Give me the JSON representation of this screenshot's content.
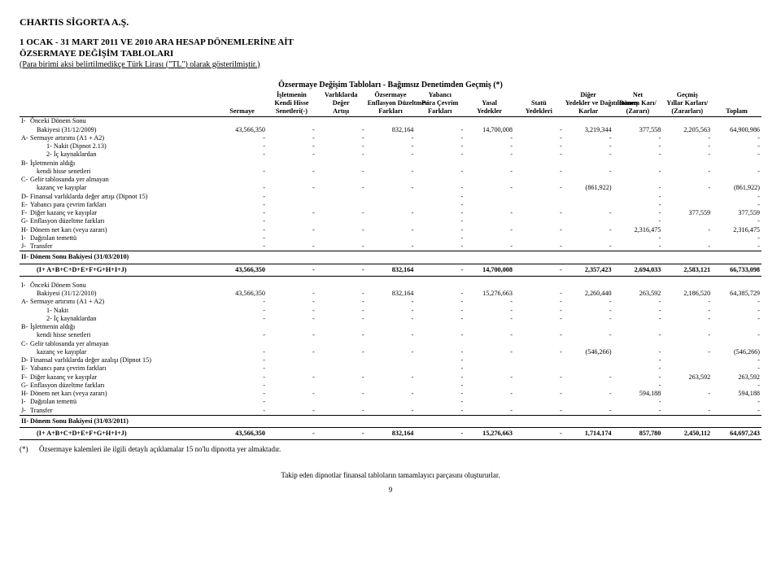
{
  "header": {
    "company": "CHARTIS SİGORTA A.Ş.",
    "title1": "1 OCAK - 31 MART 2011 VE 2010 ARA HESAP DÖNEMLERİNE AİT",
    "title2": "ÖZSERMAYE DEĞİŞİM TABLOLARI",
    "unit": "(Para birimi aksi belirtilmedikçe Türk Lirası (\"TL\") olarak gösterilmiştir.)",
    "caption": "Özsermaye Değişim Tabloları - Bağımsız Denetimden Geçmiş (*)"
  },
  "columns": {
    "c1a": "",
    "c1b": "",
    "c1c": "Sermaye",
    "c2a": "İşletmenin",
    "c2b": "Kendi Hisse",
    "c2c": "Senetleri(-)",
    "c3a": "Varlıklarda",
    "c3b": "Değer",
    "c3c": "Artışı",
    "c4a": "Özsermaye",
    "c4b": "Enflasyon Düzeltmesi",
    "c4c": "Farkları",
    "c5a": "Yabancı",
    "c5b": "Para Çevrim",
    "c5c": "Farkları",
    "c6a": "",
    "c6b": "Yasal",
    "c6c": "Yedekler",
    "c7a": "",
    "c7b": "Statü",
    "c7c": "Yedekleri",
    "c8a": "Diğer",
    "c8b": "Yedekler ve Dağıtılmamış",
    "c8c": "Karlar",
    "c9a": "Net",
    "c9b": "Dönem Karı/",
    "c9c": "(Zararı)",
    "c10a": "Geçmiş",
    "c10b": "Yıllar Karları/",
    "c10c": "(Zararları)",
    "c11a": "",
    "c11b": "",
    "c11c": "Toplam"
  },
  "section1": {
    "I": "Önceki Dönem Sonu",
    "I_b": "Bakiyesi (31/12/2009)",
    "A": "Sermaye artırımı (A1 + A2)",
    "A1": "1-   Nakit (Dipnot 2.13)",
    "A2": "2-   İç kaynaklardan",
    "B": "İşletmenin aldığı",
    "B_b": "kendi hisse senetleri",
    "C": "Gelir tablosunda yer almayan",
    "C_b": "kazanç ve kayıplar",
    "D": "Finansal varlıklarda değer artışı (Dipnot 15)",
    "E": "Yabancı para çevrim farkları",
    "F": "Diğer kazanç ve kayıplar",
    "G": "Enflasyon düzeltme farkları",
    "H": "Dönem net karı (veya zararı)",
    "I2": "Dağıtılan temettü",
    "J": "Transfer",
    "II": "Dönem Sonu Bakiyesi (31/03/2010)",
    "II_b": "(I+ A+B+C+D+E+F+G+H+I+J)",
    "vals_I": [
      "43,566,350",
      "-",
      "-",
      "832,164",
      "-",
      "14,700,008",
      "-",
      "3,219,344",
      "377,558",
      "2,205,563",
      "64,900,986"
    ],
    "vals_A": [
      "-",
      "-",
      "-",
      "-",
      "-",
      "-",
      "-",
      "-",
      "-",
      "-",
      "-"
    ],
    "vals_A1": [
      "-",
      "-",
      "-",
      "-",
      "-",
      "-",
      "-",
      "-",
      "-",
      "-",
      "-"
    ],
    "vals_A2": [
      "-",
      "-",
      "-",
      "-",
      "-",
      "-",
      "-",
      "-",
      "-",
      "-",
      "-"
    ],
    "vals_B": [
      "-",
      "-",
      "-",
      "-",
      "-",
      "-",
      "-",
      "-",
      "-",
      "-",
      "-"
    ],
    "vals_C": [
      "-",
      "-",
      "-",
      "-",
      "-",
      "-",
      "-",
      "(861,922)",
      "-",
      "-",
      "(861,922)"
    ],
    "vals_D": [
      "-",
      "",
      "",
      "",
      "-",
      "",
      "",
      "",
      "-",
      "",
      "-"
    ],
    "vals_E": [
      "-",
      "",
      "",
      "",
      "-",
      "",
      "",
      "",
      "-",
      "",
      "-"
    ],
    "vals_F": [
      "-",
      "-",
      "-",
      "-",
      "-",
      "-",
      "-",
      "-",
      "-",
      "377,559",
      "377,559"
    ],
    "vals_G": [
      "-",
      "",
      "",
      "",
      "-",
      "",
      "",
      "",
      "-",
      "",
      "-"
    ],
    "vals_H": [
      "-",
      "-",
      "-",
      "-",
      "-",
      "-",
      "-",
      "-",
      "2,316,475",
      "-",
      "2,316,475"
    ],
    "vals_I2": [
      "-",
      "",
      "",
      "",
      "-",
      "",
      "",
      "",
      "-",
      "",
      "-"
    ],
    "vals_J": [
      "-",
      "-",
      "-",
      "-",
      "-",
      "-",
      "-",
      "-",
      "-",
      "-",
      "-"
    ],
    "vals_II": [
      "43,566,350",
      "-",
      "-",
      "832,164",
      "-",
      "14,700,008",
      "-",
      "2,357,423",
      "2,694,033",
      "2,583,121",
      "66,733,098"
    ]
  },
  "section2": {
    "I": "Önceki Dönem Sonu",
    "I_b": "Bakiyesi (31/12/2010)",
    "A": "Sermaye artırımı (A1 + A2)",
    "A1": "1-   Nakit",
    "A2": "2-   İç kaynaklardan",
    "B": "İşletmenin aldığı",
    "B_b": "kendi hisse senetleri",
    "C": "Gelir tablosunda yer almayan",
    "C_b": "kazanç ve kayıplar",
    "D": "Finansal varlıklarda değer azalışı (Dipnot 15)",
    "E": "Yabancı para çevrim farkları",
    "F": "Diğer kazanç ve kayıplar",
    "G": "Enflasyon düzeltme farkları",
    "H": "Dönem net karı (veya zararı)",
    "I2": "Dağıtılan temettü",
    "J": "Transfer",
    "II": "Dönem Sonu Bakiyesi (31/03/2011)",
    "II_b": "(I+ A+B+C+D+E+F+G+H+I+J)",
    "vals_I": [
      "43,566,350",
      "-",
      "-",
      "832,164",
      "-",
      "15,276,663",
      "-",
      "2,260,440",
      "263,592",
      "2,186,520",
      "64,385,729"
    ],
    "vals_A": [
      "-",
      "-",
      "-",
      "-",
      "-",
      "-",
      "-",
      "-",
      "-",
      "-",
      "-"
    ],
    "vals_A1": [
      "-",
      "-",
      "-",
      "-",
      "-",
      "-",
      "-",
      "-",
      "-",
      "-",
      "-"
    ],
    "vals_A2": [
      "-",
      "-",
      "-",
      "-",
      "-",
      "-",
      "-",
      "-",
      "-",
      "-",
      "-"
    ],
    "vals_B": [
      "-",
      "-",
      "-",
      "-",
      "-",
      "-",
      "-",
      "-",
      "-",
      "-",
      "-"
    ],
    "vals_C": [
      "-",
      "-",
      "-",
      "-",
      "-",
      "-",
      "-",
      "(546,266)",
      "-",
      "-",
      "(546,266)"
    ],
    "vals_D": [
      "-",
      "",
      "",
      "",
      "-",
      "",
      "",
      "",
      "-",
      "",
      "-"
    ],
    "vals_E": [
      "-",
      "",
      "",
      "",
      "-",
      "",
      "",
      "",
      "-",
      "",
      "-"
    ],
    "vals_F": [
      "-",
      "-",
      "-",
      "-",
      "-",
      "-",
      "-",
      "-",
      "-",
      "263,592",
      "263,592"
    ],
    "vals_G": [
      "-",
      "",
      "",
      "",
      "-",
      "",
      "",
      "",
      "-",
      "",
      "-"
    ],
    "vals_H": [
      "-",
      "-",
      "-",
      "-",
      "-",
      "-",
      "-",
      "-",
      "594,188",
      "-",
      "594,188"
    ],
    "vals_I2": [
      "-",
      "",
      "",
      "",
      "-",
      "",
      "",
      "",
      "-",
      "",
      "-"
    ],
    "vals_J": [
      "-",
      "-",
      "-",
      "-",
      "-",
      "-",
      "-",
      "-",
      "-",
      "-",
      "-"
    ],
    "vals_II": [
      "43,566,350",
      "-",
      "-",
      "832,164",
      "-",
      "15,276,663",
      "-",
      "1,714,174",
      "857,780",
      "2,450,112",
      "64,697,243"
    ]
  },
  "footnote": "Özsermaye kalemleri ile ilgili detaylı açıklamalar 15 no'lu dipnotta yer almaktadır.",
  "footnote_marker": "(*)",
  "footer": "Takip eden dipnotlar finansal tabloların tamamlayıcı parçasını oluştururlar.",
  "page": "9",
  "tags": {
    "I": "I-",
    "A": "A-",
    "B": "B-",
    "C": "C-",
    "D": "D-",
    "E": "E-",
    "F": "F-",
    "G": "G-",
    "H": "H-",
    "I2": "I-",
    "J": "J-",
    "II": "II-"
  }
}
